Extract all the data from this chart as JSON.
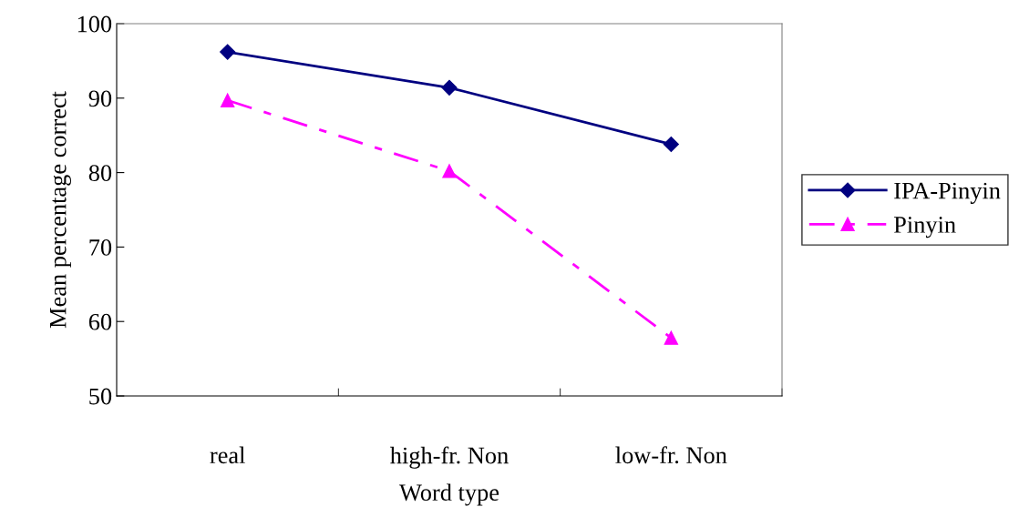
{
  "chart_data": {
    "type": "line",
    "xlabel": "Word type",
    "ylabel": "Mean percentage correct",
    "categories": [
      "real",
      "high-fr. Non",
      "low-fr. Non"
    ],
    "series": [
      {
        "name": "IPA-Pinyin",
        "color": "#000080",
        "values": [
          96.2,
          91.4,
          83.8
        ],
        "marker": "diamond",
        "line_style": "solid"
      },
      {
        "name": "Pinyin",
        "color": "#ff00ff",
        "values": [
          89.7,
          80.2,
          57.8
        ],
        "marker": "triangle",
        "line_style": "dashdot"
      }
    ],
    "ylim": [
      50,
      100
    ],
    "yticks": [
      50,
      60,
      70,
      80,
      90,
      100
    ],
    "grid": false,
    "legend": "right"
  }
}
